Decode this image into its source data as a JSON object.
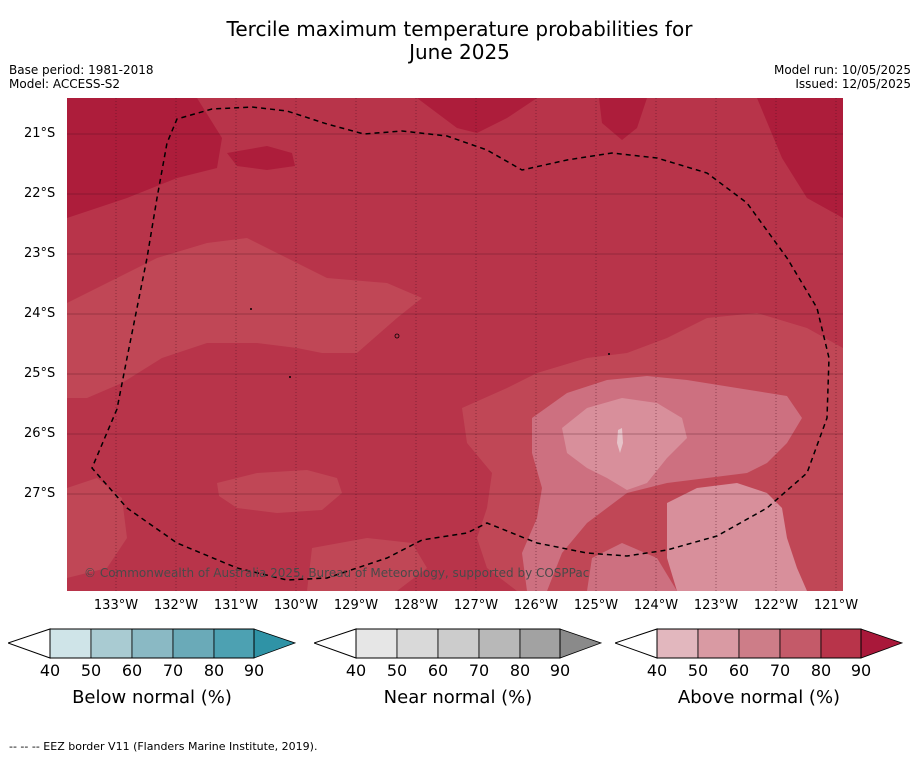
{
  "title_line1": "Tercile maximum temperature probabilities for",
  "title_line2": "June 2025",
  "base_period": "Base period: 1981-2018",
  "model": "Model: ACCESS-S2",
  "model_run": "Model run: 10/05/2025",
  "issued": "Issued: 12/05/2025",
  "lat_labels": [
    "21°S",
    "22°S",
    "23°S",
    "24°S",
    "25°S",
    "26°S",
    "27°S"
  ],
  "lon_labels": [
    "133°W",
    "132°W",
    "131°W",
    "130°W",
    "129°W",
    "128°W",
    "127°W",
    "126°W",
    "125°W",
    "124°W",
    "123°W",
    "122°W",
    "121°W"
  ],
  "copyright": "© Commonwealth of Australia 2025, Bureau of Meteorology, supported by COSPPac",
  "colorbars": [
    {
      "label": "Below normal (%)",
      "ticks": [
        "40",
        "50",
        "60",
        "70",
        "80",
        "90"
      ],
      "colors": [
        "#cfe4e8",
        "#a9cbd2",
        "#8ab9c4",
        "#6aaab8",
        "#4da1b2",
        "#2f93a6"
      ]
    },
    {
      "label": "Near normal (%)",
      "ticks": [
        "40",
        "50",
        "60",
        "70",
        "80",
        "90"
      ],
      "colors": [
        "#e6e6e6",
        "#d9d9d9",
        "#cccccc",
        "#b8b8b8",
        "#a2a2a2",
        "#8a8a8a"
      ]
    },
    {
      "label": "Above normal (%)",
      "ticks": [
        "40",
        "50",
        "60",
        "70",
        "80",
        "90"
      ],
      "colors": [
        "#e2b7be",
        "#d99aa3",
        "#cd7d88",
        "#c45a69",
        "#b8344a",
        "#a9183a"
      ]
    }
  ],
  "footnote": "-- -- -- EEZ border V11 (Flanders Marine Institute, 2019)."
}
